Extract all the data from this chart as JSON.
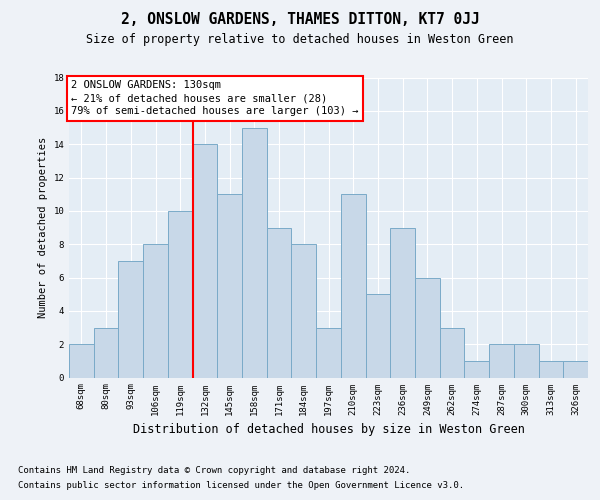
{
  "title": "2, ONSLOW GARDENS, THAMES DITTON, KT7 0JJ",
  "subtitle": "Size of property relative to detached houses in Weston Green",
  "xlabel": "Distribution of detached houses by size in Weston Green",
  "ylabel": "Number of detached properties",
  "footer_line1": "Contains HM Land Registry data © Crown copyright and database right 2024.",
  "footer_line2": "Contains public sector information licensed under the Open Government Licence v3.0.",
  "annotation_line1": "2 ONSLOW GARDENS: 130sqm",
  "annotation_line2": "← 21% of detached houses are smaller (28)",
  "annotation_line3": "79% of semi-detached houses are larger (103) →",
  "bar_color": "#c8d8e8",
  "bar_edge_color": "#7aaac8",
  "marker_color": "red",
  "categories": [
    "68sqm",
    "80sqm",
    "93sqm",
    "106sqm",
    "119sqm",
    "132sqm",
    "145sqm",
    "158sqm",
    "171sqm",
    "184sqm",
    "197sqm",
    "210sqm",
    "223sqm",
    "236sqm",
    "249sqm",
    "262sqm",
    "274sqm",
    "287sqm",
    "300sqm",
    "313sqm",
    "326sqm"
  ],
  "values": [
    2,
    3,
    7,
    8,
    10,
    14,
    11,
    15,
    9,
    8,
    3,
    11,
    5,
    9,
    6,
    3,
    1,
    2,
    2,
    1,
    1
  ],
  "ylim": [
    0,
    18
  ],
  "yticks": [
    0,
    2,
    4,
    6,
    8,
    10,
    12,
    14,
    16,
    18
  ],
  "background_color": "#eef2f7",
  "plot_background": "#e4edf5",
  "grid_color": "white",
  "title_fontsize": 10.5,
  "subtitle_fontsize": 8.5,
  "xlabel_fontsize": 8.5,
  "ylabel_fontsize": 7.5,
  "tick_fontsize": 6.5,
  "annotation_fontsize": 7.5,
  "footer_fontsize": 6.5,
  "marker_idx": 5
}
